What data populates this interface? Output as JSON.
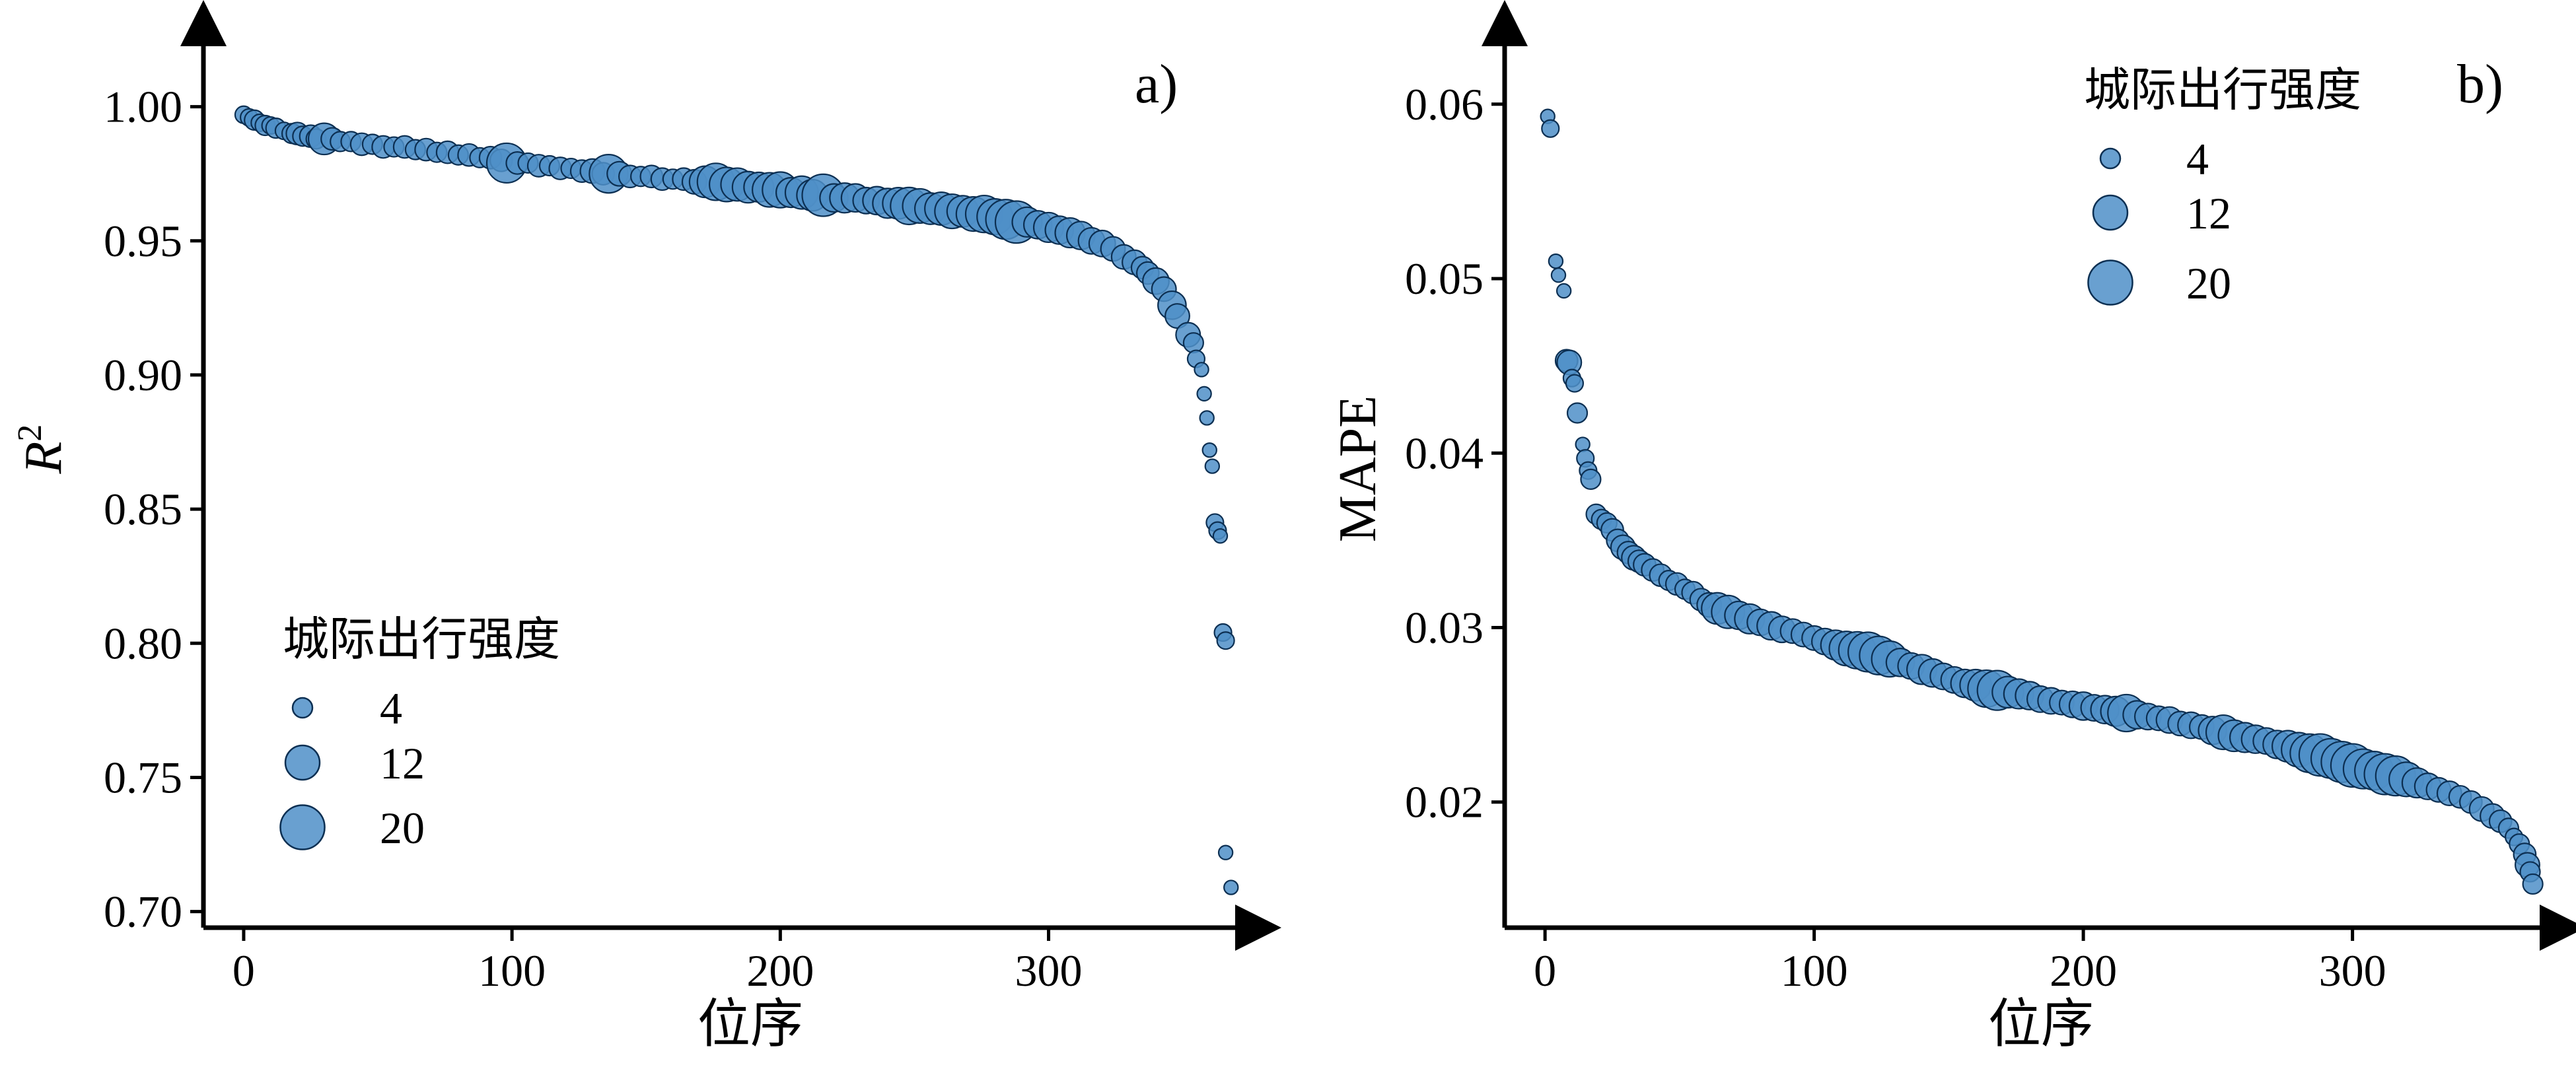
{
  "figure": {
    "chart_data": [
      {
        "panel_label": "a)",
        "type": "scatter",
        "xlabel": "位序",
        "ylabel_base": "R",
        "ylabel_sup": "2",
        "xlim": [
          -15,
          372
        ],
        "ylim": [
          0.694,
          1.025
        ],
        "xticks": [
          0,
          100,
          200,
          300
        ],
        "xtick_labels": [
          "0",
          "100",
          "200",
          "300"
        ],
        "yticks": [
          0.7,
          0.75,
          0.8,
          0.85,
          0.9,
          0.95,
          1.0
        ],
        "ytick_labels": [
          "0.70",
          "0.75",
          "0.80",
          "0.85",
          "0.90",
          "0.95",
          "1.00"
        ],
        "legend": {
          "title": "城际出行强度",
          "placement": "bottom-left",
          "sizes": [
            4,
            12,
            20
          ],
          "labels": [
            "4",
            "12",
            "20"
          ]
        },
        "points": [
          [
            0,
            0.997,
            3
          ],
          [
            2,
            0.996,
            3
          ],
          [
            4,
            0.995,
            4
          ],
          [
            6,
            0.994,
            3
          ],
          [
            8,
            0.993,
            4
          ],
          [
            10,
            0.993,
            3
          ],
          [
            12,
            0.992,
            4
          ],
          [
            15,
            0.991,
            3
          ],
          [
            18,
            0.99,
            4
          ],
          [
            20,
            0.99,
            5
          ],
          [
            22,
            0.989,
            4
          ],
          [
            25,
            0.989,
            5
          ],
          [
            27,
            0.988,
            4
          ],
          [
            30,
            0.988,
            10
          ],
          [
            33,
            0.988,
            5
          ],
          [
            36,
            0.987,
            4
          ],
          [
            40,
            0.987,
            4
          ],
          [
            44,
            0.986,
            5
          ],
          [
            48,
            0.986,
            4
          ],
          [
            52,
            0.985,
            5
          ],
          [
            56,
            0.985,
            4
          ],
          [
            60,
            0.985,
            5
          ],
          [
            64,
            0.984,
            4
          ],
          [
            68,
            0.984,
            5
          ],
          [
            72,
            0.983,
            4
          ],
          [
            76,
            0.983,
            5
          ],
          [
            80,
            0.982,
            4
          ],
          [
            84,
            0.982,
            5
          ],
          [
            88,
            0.981,
            4
          ],
          [
            92,
            0.981,
            5
          ],
          [
            96,
            0.98,
            5
          ],
          [
            98,
            0.979,
            16
          ],
          [
            102,
            0.979,
            5
          ],
          [
            106,
            0.979,
            4
          ],
          [
            110,
            0.978,
            5
          ],
          [
            114,
            0.978,
            4
          ],
          [
            118,
            0.977,
            5
          ],
          [
            122,
            0.977,
            4
          ],
          [
            126,
            0.976,
            5
          ],
          [
            130,
            0.976,
            6
          ],
          [
            134,
            0.975,
            5
          ],
          [
            136,
            0.975,
            15
          ],
          [
            140,
            0.975,
            6
          ],
          [
            144,
            0.974,
            5
          ],
          [
            148,
            0.974,
            4
          ],
          [
            152,
            0.974,
            5
          ],
          [
            156,
            0.973,
            5
          ],
          [
            160,
            0.973,
            4
          ],
          [
            164,
            0.973,
            5
          ],
          [
            168,
            0.972,
            6
          ],
          [
            172,
            0.972,
            10
          ],
          [
            176,
            0.972,
            14
          ],
          [
            180,
            0.971,
            12
          ],
          [
            184,
            0.971,
            11
          ],
          [
            188,
            0.97,
            10
          ],
          [
            192,
            0.97,
            9
          ],
          [
            196,
            0.969,
            12
          ],
          [
            200,
            0.969,
            13
          ],
          [
            204,
            0.968,
            9
          ],
          [
            208,
            0.968,
            11
          ],
          [
            212,
            0.967,
            10
          ],
          [
            216,
            0.967,
            18
          ],
          [
            220,
            0.966,
            8
          ],
          [
            224,
            0.966,
            9
          ],
          [
            228,
            0.966,
            8
          ],
          [
            232,
            0.965,
            7
          ],
          [
            236,
            0.965,
            8
          ],
          [
            240,
            0.964,
            9
          ],
          [
            244,
            0.964,
            10
          ],
          [
            248,
            0.963,
            14
          ],
          [
            252,
            0.963,
            12
          ],
          [
            256,
            0.962,
            10
          ],
          [
            260,
            0.962,
            11
          ],
          [
            264,
            0.961,
            12
          ],
          [
            268,
            0.961,
            10
          ],
          [
            272,
            0.96,
            12
          ],
          [
            276,
            0.96,
            14
          ],
          [
            280,
            0.959,
            13
          ],
          [
            284,
            0.958,
            16
          ],
          [
            288,
            0.957,
            18
          ],
          [
            292,
            0.957,
            9
          ],
          [
            296,
            0.956,
            8
          ],
          [
            300,
            0.955,
            9
          ],
          [
            304,
            0.954,
            8
          ],
          [
            308,
            0.953,
            9
          ],
          [
            312,
            0.952,
            8
          ],
          [
            316,
            0.95,
            7
          ],
          [
            320,
            0.949,
            7
          ],
          [
            324,
            0.947,
            6
          ],
          [
            328,
            0.944,
            6
          ],
          [
            332,
            0.942,
            6
          ],
          [
            335,
            0.94,
            5
          ],
          [
            337,
            0.938,
            5
          ],
          [
            340,
            0.935,
            7
          ],
          [
            343,
            0.932,
            6
          ],
          [
            346,
            0.926,
            8
          ],
          [
            348,
            0.922,
            6
          ],
          [
            352,
            0.915,
            6
          ],
          [
            354,
            0.912,
            4
          ],
          [
            355,
            0.906,
            3
          ],
          [
            357,
            0.902,
            2
          ],
          [
            358,
            0.893,
            2
          ],
          [
            359,
            0.884,
            2
          ],
          [
            360,
            0.872,
            2
          ],
          [
            361,
            0.866,
            2
          ],
          [
            362,
            0.845,
            3
          ],
          [
            363,
            0.842,
            3
          ],
          [
            364,
            0.84,
            2
          ],
          [
            365,
            0.804,
            3
          ],
          [
            366,
            0.801,
            3
          ],
          [
            366,
            0.722,
            2
          ],
          [
            368,
            0.709,
            2
          ]
        ]
      },
      {
        "panel_label": "b)",
        "type": "scatter",
        "xlabel": "位序",
        "ylabel": "MAPE",
        "xlim": [
          -15,
          372
        ],
        "ylim": [
          0.0128,
          0.0637
        ],
        "xticks": [
          0,
          100,
          200,
          300
        ],
        "xtick_labels": [
          "0",
          "100",
          "200",
          "300"
        ],
        "yticks": [
          0.02,
          0.03,
          0.04,
          0.05,
          0.06
        ],
        "ytick_labels": [
          "0.02",
          "0.03",
          "0.04",
          "0.05",
          "0.06"
        ],
        "legend": {
          "title": "城际出行强度",
          "placement": "top-right",
          "sizes": [
            4,
            12,
            20
          ],
          "labels": [
            "4",
            "12",
            "20"
          ]
        },
        "points": [
          [
            1,
            0.0593,
            2
          ],
          [
            2,
            0.0586,
            3
          ],
          [
            4,
            0.051,
            2
          ],
          [
            5,
            0.0502,
            2
          ],
          [
            7,
            0.0493,
            2
          ],
          [
            8,
            0.0453,
            5
          ],
          [
            9,
            0.0452,
            6
          ],
          [
            10,
            0.0443,
            3
          ],
          [
            11,
            0.044,
            3
          ],
          [
            12,
            0.0423,
            4
          ],
          [
            14,
            0.0405,
            2
          ],
          [
            15,
            0.0397,
            3
          ],
          [
            16,
            0.039,
            3
          ],
          [
            17,
            0.0385,
            4
          ],
          [
            19,
            0.0365,
            4
          ],
          [
            21,
            0.0362,
            4
          ],
          [
            23,
            0.036,
            4
          ],
          [
            25,
            0.0356,
            5
          ],
          [
            27,
            0.035,
            5
          ],
          [
            29,
            0.0346,
            6
          ],
          [
            31,
            0.0343,
            5
          ],
          [
            33,
            0.034,
            6
          ],
          [
            35,
            0.0338,
            5
          ],
          [
            37,
            0.0336,
            5
          ],
          [
            40,
            0.0333,
            5
          ],
          [
            43,
            0.033,
            5
          ],
          [
            46,
            0.0327,
            4
          ],
          [
            49,
            0.0325,
            5
          ],
          [
            52,
            0.0322,
            4
          ],
          [
            55,
            0.032,
            5
          ],
          [
            58,
            0.0316,
            5
          ],
          [
            61,
            0.0313,
            6
          ],
          [
            64,
            0.0311,
            10
          ],
          [
            68,
            0.0309,
            11
          ],
          [
            72,
            0.0307,
            8
          ],
          [
            76,
            0.0305,
            9
          ],
          [
            80,
            0.0303,
            7
          ],
          [
            84,
            0.0301,
            8
          ],
          [
            88,
            0.0299,
            7
          ],
          [
            92,
            0.0298,
            6
          ],
          [
            96,
            0.0296,
            6
          ],
          [
            100,
            0.0294,
            6
          ],
          [
            104,
            0.0292,
            7
          ],
          [
            108,
            0.029,
            9
          ],
          [
            112,
            0.0288,
            12
          ],
          [
            116,
            0.0287,
            14
          ],
          [
            120,
            0.0286,
            16
          ],
          [
            124,
            0.0284,
            15
          ],
          [
            128,
            0.0282,
            13
          ],
          [
            132,
            0.028,
            8
          ],
          [
            136,
            0.0278,
            7
          ],
          [
            140,
            0.0276,
            9
          ],
          [
            144,
            0.0274,
            8
          ],
          [
            148,
            0.0272,
            7
          ],
          [
            152,
            0.027,
            7
          ],
          [
            156,
            0.0268,
            8
          ],
          [
            160,
            0.0267,
            10
          ],
          [
            164,
            0.0265,
            14
          ],
          [
            168,
            0.0264,
            16
          ],
          [
            172,
            0.0263,
            10
          ],
          [
            176,
            0.0262,
            9
          ],
          [
            180,
            0.0261,
            8
          ],
          [
            184,
            0.0259,
            7
          ],
          [
            188,
            0.0258,
            7
          ],
          [
            192,
            0.0257,
            6
          ],
          [
            196,
            0.0256,
            7
          ],
          [
            200,
            0.0255,
            8
          ],
          [
            204,
            0.0254,
            7
          ],
          [
            208,
            0.0253,
            8
          ],
          [
            212,
            0.0252,
            9
          ],
          [
            216,
            0.0251,
            14
          ],
          [
            220,
            0.025,
            8
          ],
          [
            224,
            0.0249,
            7
          ],
          [
            228,
            0.0248,
            6
          ],
          [
            232,
            0.0247,
            7
          ],
          [
            236,
            0.0245,
            6
          ],
          [
            240,
            0.0244,
            7
          ],
          [
            244,
            0.0243,
            6
          ],
          [
            248,
            0.0241,
            8
          ],
          [
            252,
            0.024,
            12
          ],
          [
            256,
            0.0238,
            10
          ],
          [
            260,
            0.0237,
            9
          ],
          [
            264,
            0.0236,
            8
          ],
          [
            268,
            0.0235,
            7
          ],
          [
            272,
            0.0233,
            8
          ],
          [
            276,
            0.0232,
            10
          ],
          [
            280,
            0.023,
            12
          ],
          [
            284,
            0.0228,
            15
          ],
          [
            288,
            0.0227,
            18
          ],
          [
            292,
            0.0225,
            16
          ],
          [
            296,
            0.0223,
            17
          ],
          [
            300,
            0.0221,
            19
          ],
          [
            304,
            0.0219,
            16
          ],
          [
            308,
            0.0218,
            15
          ],
          [
            312,
            0.0216,
            17
          ],
          [
            316,
            0.0215,
            16
          ],
          [
            320,
            0.0213,
            12
          ],
          [
            324,
            0.0211,
            9
          ],
          [
            328,
            0.0209,
            7
          ],
          [
            332,
            0.0207,
            6
          ],
          [
            336,
            0.0205,
            6
          ],
          [
            340,
            0.0203,
            5
          ],
          [
            344,
            0.02,
            5
          ],
          [
            348,
            0.0196,
            6
          ],
          [
            352,
            0.0192,
            6
          ],
          [
            355,
            0.0189,
            5
          ],
          [
            358,
            0.0185,
            4
          ],
          [
            360,
            0.018,
            3
          ],
          [
            362,
            0.0176,
            4
          ],
          [
            364,
            0.017,
            5
          ],
          [
            365,
            0.0164,
            6
          ],
          [
            366,
            0.016,
            4
          ],
          [
            367,
            0.0153,
            4
          ]
        ]
      }
    ]
  }
}
